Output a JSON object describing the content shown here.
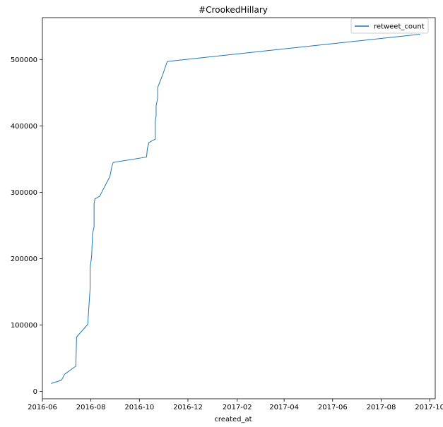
{
  "chart_data": {
    "type": "line",
    "title": "#CrookedHillary",
    "xlabel": "created_at",
    "ylabel": "",
    "x_type": "date",
    "xlim": [
      "2016-06-01",
      "2017-10-08"
    ],
    "ylim": [
      -11000,
      563000
    ],
    "x_ticks": [
      "2016-06",
      "2016-08",
      "2016-10",
      "2016-12",
      "2017-02",
      "2017-04",
      "2017-06",
      "2017-08",
      "2017-10"
    ],
    "y_ticks": [
      0,
      100000,
      200000,
      300000,
      400000,
      500000
    ],
    "y_tick_labels": [
      "0",
      "100000",
      "200000",
      "300000",
      "400000",
      "500000"
    ],
    "grid": false,
    "legend": {
      "position": "top-right",
      "entries": [
        "retweet_count"
      ]
    },
    "series": [
      {
        "name": "retweet_count",
        "color": "#1f77b4",
        "points": [
          [
            "2016-06-12",
            12000
          ],
          [
            "2016-06-25",
            17000
          ],
          [
            "2016-06-29",
            26000
          ],
          [
            "2016-07-13",
            38000
          ],
          [
            "2016-07-14",
            82000
          ],
          [
            "2016-07-28",
            101000
          ],
          [
            "2016-07-31",
            155000
          ],
          [
            "2016-07-31",
            185000
          ],
          [
            "2016-08-02",
            205000
          ],
          [
            "2016-08-03",
            237000
          ],
          [
            "2016-08-05",
            248000
          ],
          [
            "2016-08-05",
            282000
          ],
          [
            "2016-08-06",
            290000
          ],
          [
            "2016-08-12",
            294000
          ],
          [
            "2016-08-25",
            324000
          ],
          [
            "2016-08-27",
            337000
          ],
          [
            "2016-08-29",
            345000
          ],
          [
            "2016-10-10",
            353000
          ],
          [
            "2016-10-11",
            366000
          ],
          [
            "2016-10-13",
            375000
          ],
          [
            "2016-10-21",
            380000
          ],
          [
            "2016-10-21",
            408000
          ],
          [
            "2016-10-22",
            415000
          ],
          [
            "2016-10-22",
            430000
          ],
          [
            "2016-10-24",
            442000
          ],
          [
            "2016-10-24",
            458000
          ],
          [
            "2016-10-30",
            476000
          ],
          [
            "2016-11-05",
            497000
          ],
          [
            "2017-09-19",
            538000
          ]
        ]
      }
    ]
  }
}
